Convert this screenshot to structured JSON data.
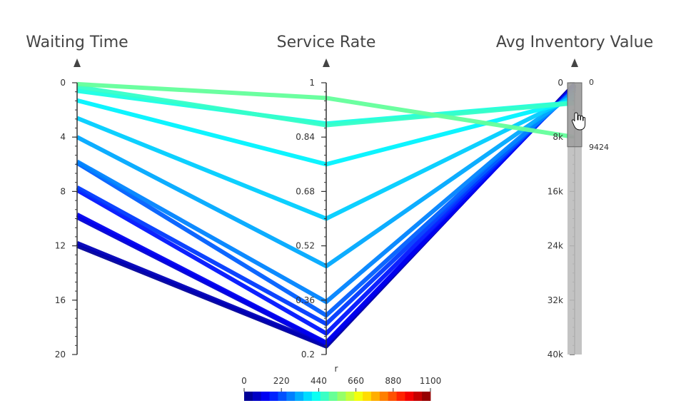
{
  "chart_data": {
    "type": "parallel_coordinates",
    "axes": [
      {
        "name": "Waiting Time",
        "range": [
          0,
          20
        ],
        "reversed": true,
        "ticks": [
          {
            "v": 0,
            "label": "0"
          },
          {
            "v": 4,
            "label": "4"
          },
          {
            "v": 8,
            "label": "8"
          },
          {
            "v": 12,
            "label": "12"
          },
          {
            "v": 16,
            "label": "16"
          },
          {
            "v": 20,
            "label": "20"
          }
        ]
      },
      {
        "name": "Service Rate",
        "range": [
          0.2,
          1
        ],
        "reversed": false,
        "ticks": [
          {
            "v": 1,
            "label": "1"
          },
          {
            "v": 0.84,
            "label": "0.84"
          },
          {
            "v": 0.68,
            "label": "0.68"
          },
          {
            "v": 0.52,
            "label": "0.52"
          },
          {
            "v": 0.36,
            "label": "0.36"
          },
          {
            "v": 0.2,
            "label": "0.2"
          }
        ]
      },
      {
        "name": "Avg Inventory Value",
        "range": [
          0,
          40000
        ],
        "reversed": true,
        "ticks": [
          {
            "v": 0,
            "label": "0"
          },
          {
            "v": 8000,
            "label": "8k"
          },
          {
            "v": 16000,
            "label": "16k"
          },
          {
            "v": 24000,
            "label": "24k"
          },
          {
            "v": 32000,
            "label": "32k"
          },
          {
            "v": 40000,
            "label": "40k"
          }
        ]
      }
    ],
    "brush": {
      "axis": "Avg Inventory Value",
      "range": [
        0,
        9424
      ],
      "min_label": "0",
      "max_label": "9424"
    },
    "color": {
      "variable": "r",
      "colorbar_label": "r",
      "range": [
        0,
        1100
      ],
      "tick_labels": [
        "0",
        "220",
        "440",
        "660",
        "880",
        "1100"
      ],
      "tick_values": [
        0,
        220,
        440,
        660,
        880,
        1100
      ],
      "colorscale": [
        "#00007f",
        "#0000ff",
        "#007fff",
        "#00ffff",
        "#7fff7f",
        "#ffff00",
        "#ff7f00",
        "#ff0000",
        "#7f0000"
      ]
    },
    "lines": [
      {
        "r": 520,
        "waiting_time": 0.1,
        "service_rate": 0.955,
        "inventory": 8000
      },
      {
        "r": 470,
        "waiting_time": 0.3,
        "service_rate": 0.875,
        "inventory": 3000
      },
      {
        "r": 440,
        "waiting_time": 0.6,
        "service_rate": 0.88,
        "inventory": 2900
      },
      {
        "r": 400,
        "waiting_time": 1.3,
        "service_rate": 0.76,
        "inventory": 2600
      },
      {
        "r": 360,
        "waiting_time": 2.6,
        "service_rate": 0.6,
        "inventory": 2000
      },
      {
        "r": 320,
        "waiting_time": 4.0,
        "service_rate": 0.46,
        "inventory": 1600
      },
      {
        "r": 280,
        "waiting_time": 5.8,
        "service_rate": 0.355,
        "inventory": 1200
      },
      {
        "r": 240,
        "waiting_time": 5.9,
        "service_rate": 0.315,
        "inventory": 1000
      },
      {
        "r": 200,
        "waiting_time": 7.7,
        "service_rate": 0.29,
        "inventory": 900
      },
      {
        "r": 160,
        "waiting_time": 7.9,
        "service_rate": 0.262,
        "inventory": 700
      },
      {
        "r": 120,
        "waiting_time": 9.7,
        "service_rate": 0.235,
        "inventory": 500
      },
      {
        "r": 90,
        "waiting_time": 9.9,
        "service_rate": 0.232,
        "inventory": 400
      },
      {
        "r": 60,
        "waiting_time": 11.8,
        "service_rate": 0.228,
        "inventory": 300
      },
      {
        "r": 30,
        "waiting_time": 12.0,
        "service_rate": 0.224,
        "inventory": 200
      }
    ]
  }
}
